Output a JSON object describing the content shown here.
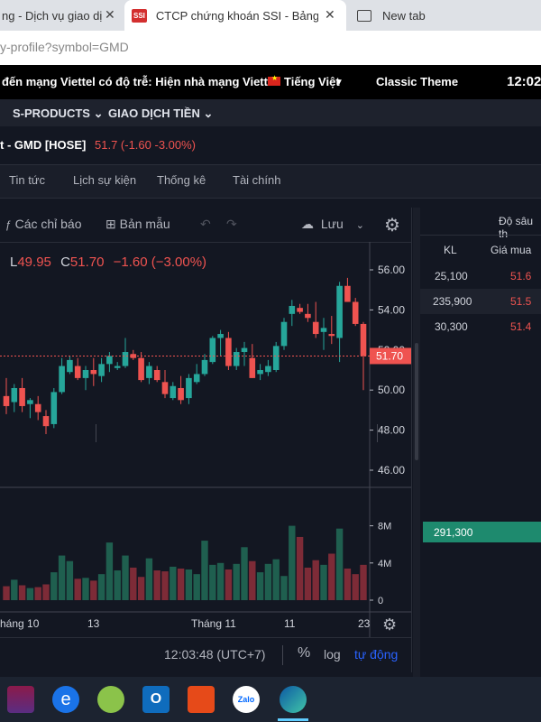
{
  "browser": {
    "tabs": [
      {
        "title": "ng - Dịch vụ giao dị",
        "active": false
      },
      {
        "title": "CTCP chứng khoán SSI - Bảng gi",
        "active": true,
        "favicon": "SSI"
      },
      {
        "title": "New tab",
        "active": false
      }
    ],
    "url": "y-profile?symbol=GMD"
  },
  "topbar": {
    "notice": "đến mạng Viettel có độ trễ: Hiện nhà mạng Viett",
    "language": "Tiếng Việt",
    "theme": "Classic Theme",
    "clock": "12:02"
  },
  "menu": {
    "items": [
      "S-PRODUCTS",
      "GIAO DỊCH TIỀN"
    ]
  },
  "symbol": {
    "name": "t - GMD [HOSE]",
    "price": "51.7 (-1.60 -3.00%)"
  },
  "tabs": [
    "Tin tức",
    "Lịch sự kiện",
    "Thống kê",
    "Tài chính"
  ],
  "toolbar": {
    "indicators": "Các chỉ báo",
    "templates": "Bản mẫu",
    "save": "Lưu"
  },
  "ohlc": {
    "low_label": "L",
    "low": "49.95",
    "close_label": "C",
    "close": "51.70",
    "change": "−1.60 (−3.00%)"
  },
  "colors": {
    "up": "#26a69a",
    "down": "#ef5350",
    "background": "#131722"
  },
  "chart_data": {
    "type": "candlestick",
    "y_ticks": [
      "56.00",
      "54.00",
      "52.00",
      "50.00",
      "48.00",
      "46.00"
    ],
    "ylim": [
      45.0,
      57.0
    ],
    "last_price_label": "51.70",
    "x_ticks": [
      "háng 10",
      "13",
      "Tháng 11",
      "11",
      "23"
    ],
    "volume_ticks": [
      "8M",
      "4M",
      "0"
    ],
    "volume_ylim": [
      0,
      10
    ],
    "candles": [
      {
        "o": 49.7,
        "h": 50.6,
        "l": 48.8,
        "c": 49.2
      },
      {
        "o": 49.4,
        "h": 50.3,
        "l": 48.9,
        "c": 50.1
      },
      {
        "o": 50.1,
        "h": 50.6,
        "l": 48.9,
        "c": 49.2
      },
      {
        "o": 49.3,
        "h": 49.6,
        "l": 48.6,
        "c": 49.5
      },
      {
        "o": 49.3,
        "h": 49.7,
        "l": 48.5,
        "c": 48.9
      },
      {
        "o": 48.7,
        "h": 49.0,
        "l": 47.8,
        "c": 48.2
      },
      {
        "o": 48.3,
        "h": 50.1,
        "l": 48.1,
        "c": 49.9
      },
      {
        "o": 49.9,
        "h": 51.6,
        "l": 49.8,
        "c": 51.2
      },
      {
        "o": 50.9,
        "h": 51.7,
        "l": 50.8,
        "c": 51.5
      },
      {
        "o": 51.2,
        "h": 51.6,
        "l": 50.5,
        "c": 50.6
      },
      {
        "o": 50.6,
        "h": 51.2,
        "l": 50.0,
        "c": 51.0
      },
      {
        "o": 51.0,
        "h": 51.6,
        "l": 50.2,
        "c": 50.8
      },
      {
        "o": 50.7,
        "h": 51.6,
        "l": 50.4,
        "c": 51.3
      },
      {
        "o": 51.3,
        "h": 51.9,
        "l": 50.9,
        "c": 51.7
      },
      {
        "o": 51.1,
        "h": 51.4,
        "l": 51.0,
        "c": 51.2
      },
      {
        "o": 51.2,
        "h": 52.6,
        "l": 51.1,
        "c": 51.9
      },
      {
        "o": 51.8,
        "h": 52.0,
        "l": 51.5,
        "c": 51.6
      },
      {
        "o": 51.6,
        "h": 51.9,
        "l": 50.4,
        "c": 50.5
      },
      {
        "o": 50.6,
        "h": 51.4,
        "l": 50.3,
        "c": 51.2
      },
      {
        "o": 51.0,
        "h": 51.2,
        "l": 50.4,
        "c": 50.5
      },
      {
        "o": 50.4,
        "h": 51.0,
        "l": 49.6,
        "c": 49.8
      },
      {
        "o": 49.6,
        "h": 50.4,
        "l": 49.5,
        "c": 50.2
      },
      {
        "o": 50.1,
        "h": 50.7,
        "l": 49.3,
        "c": 49.5
      },
      {
        "o": 49.6,
        "h": 50.8,
        "l": 49.3,
        "c": 50.6
      },
      {
        "o": 50.4,
        "h": 51.3,
        "l": 50.3,
        "c": 50.8
      },
      {
        "o": 50.8,
        "h": 51.8,
        "l": 50.7,
        "c": 51.5
      },
      {
        "o": 51.4,
        "h": 52.7,
        "l": 51.3,
        "c": 52.6
      },
      {
        "o": 52.6,
        "h": 53.0,
        "l": 51.7,
        "c": 52.8
      },
      {
        "o": 52.6,
        "h": 52.9,
        "l": 51.0,
        "c": 51.2
      },
      {
        "o": 51.2,
        "h": 52.1,
        "l": 51.0,
        "c": 51.9
      },
      {
        "o": 51.9,
        "h": 52.4,
        "l": 51.2,
        "c": 52.1
      },
      {
        "o": 51.6,
        "h": 52.3,
        "l": 50.6,
        "c": 50.6
      },
      {
        "o": 50.8,
        "h": 51.3,
        "l": 50.5,
        "c": 51.0
      },
      {
        "o": 50.9,
        "h": 51.5,
        "l": 50.7,
        "c": 51.2
      },
      {
        "o": 51.0,
        "h": 52.4,
        "l": 50.9,
        "c": 52.2
      },
      {
        "o": 52.2,
        "h": 53.6,
        "l": 52.0,
        "c": 53.4
      },
      {
        "o": 53.8,
        "h": 54.5,
        "l": 53.2,
        "c": 54.2
      },
      {
        "o": 54.1,
        "h": 54.3,
        "l": 53.8,
        "c": 53.9
      },
      {
        "o": 53.8,
        "h": 54.3,
        "l": 53.4,
        "c": 53.6
      },
      {
        "o": 53.4,
        "h": 54.4,
        "l": 52.6,
        "c": 52.8
      },
      {
        "o": 52.9,
        "h": 53.6,
        "l": 52.0,
        "c": 53.1
      },
      {
        "o": 52.8,
        "h": 53.7,
        "l": 52.3,
        "c": 52.7
      },
      {
        "o": 52.6,
        "h": 55.4,
        "l": 51.4,
        "c": 55.2
      },
      {
        "o": 55.2,
        "h": 55.6,
        "l": 54.4,
        "c": 54.4
      },
      {
        "o": 54.4,
        "h": 54.6,
        "l": 53.2,
        "c": 53.3
      },
      {
        "o": 53.3,
        "h": 53.4,
        "l": 50.0,
        "c": 51.7
      }
    ],
    "volumes": [
      1.5,
      2.2,
      1.6,
      1.3,
      1.4,
      1.7,
      3.0,
      4.8,
      4.2,
      2.3,
      2.4,
      2.1,
      2.8,
      6.2,
      3.2,
      4.8,
      3.5,
      2.5,
      4.5,
      3.2,
      3.1,
      3.6,
      3.4,
      3.3,
      2.8,
      6.4,
      3.8,
      4.0,
      3.3,
      3.9,
      5.7,
      4.2,
      3.0,
      3.9,
      4.4,
      2.6,
      8.0,
      6.8,
      3.5,
      4.3,
      3.8,
      5.0,
      7.7,
      3.4,
      2.8,
      3.8
    ]
  },
  "bottombar": {
    "time": "12:03:48 (UTC+7)",
    "percent": "%",
    "log": "log",
    "auto": "tự động"
  },
  "orderbook": {
    "title": "Độ sâu th",
    "col_kl": "KL",
    "col_price": "Giá mua",
    "rows": [
      {
        "kl": "25,100",
        "price": "51.6"
      },
      {
        "kl": "235,900",
        "price": "51.5"
      },
      {
        "kl": "30,300",
        "price": "51.4"
      }
    ],
    "total": "291,300"
  },
  "taskbar": {
    "icons": [
      "winrar-icon",
      "edge-legacy-icon",
      "coccoc-icon",
      "outlook-icon",
      "foxit-icon",
      "zalo-icon",
      "edge-icon"
    ]
  }
}
